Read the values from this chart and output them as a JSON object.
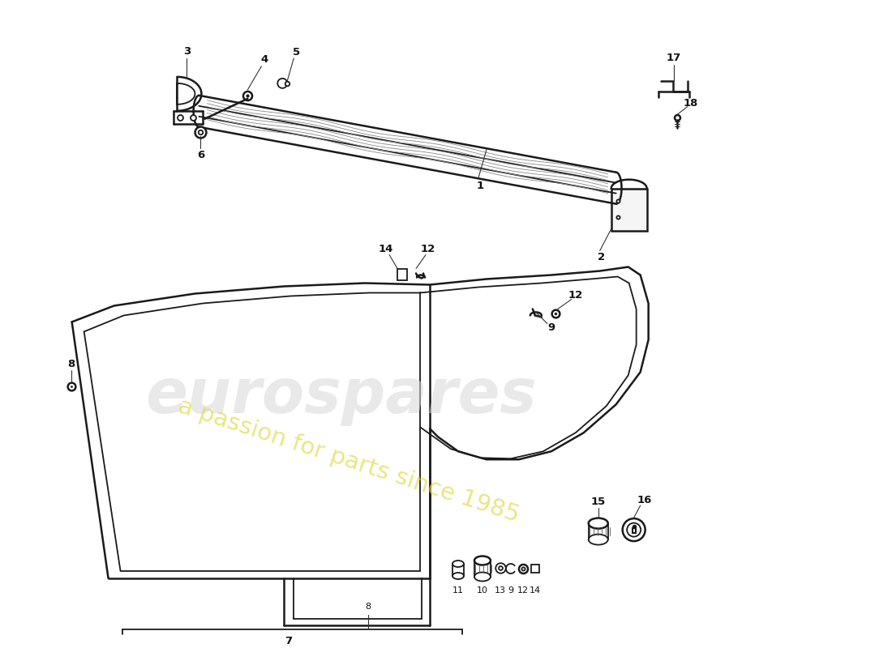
{
  "bg_color": "#ffffff",
  "line_color": "#1a1a1a",
  "watermark1": "eurospares",
  "watermark2": "a passion for parts since 1985",
  "lw": 1.3,
  "lw_thick": 1.8
}
